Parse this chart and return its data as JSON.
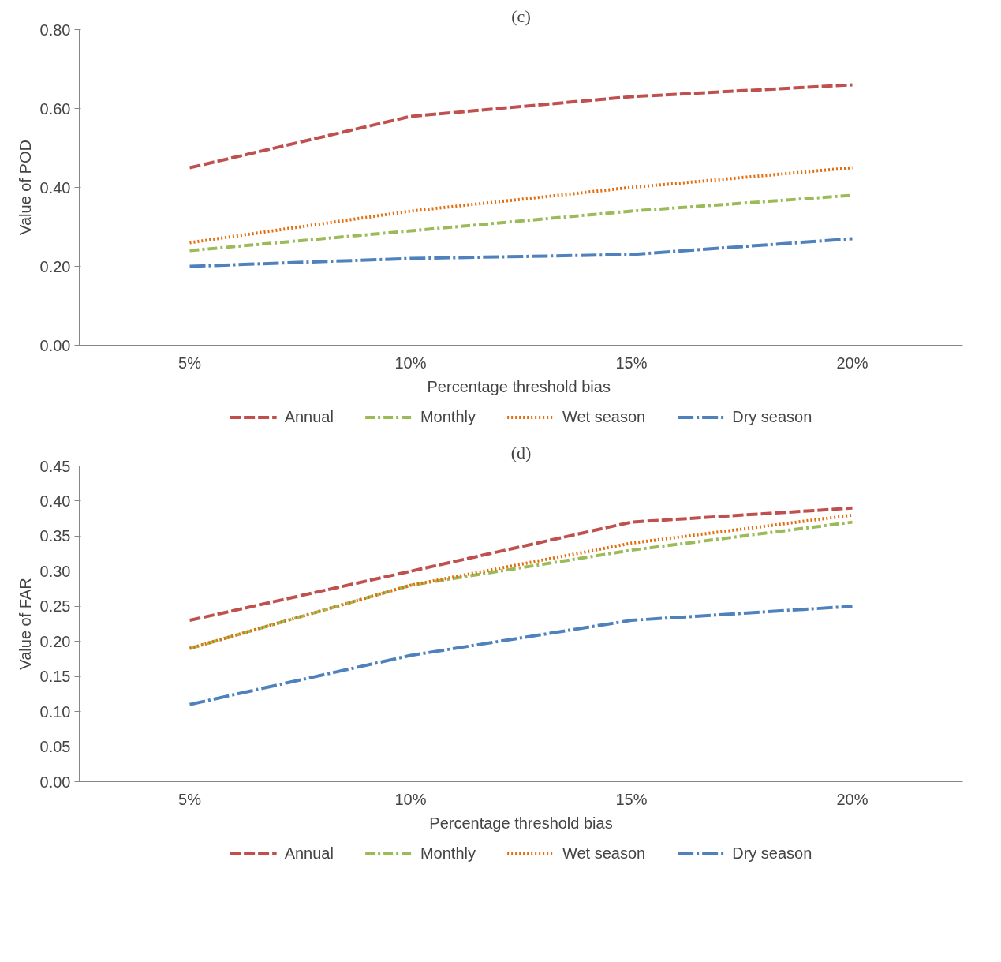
{
  "chart_data": [
    {
      "type": "line",
      "title": "(c)",
      "xlabel": "Percentage  threshold bias",
      "ylabel": "Value of POD",
      "categories": [
        "5%",
        "10%",
        "15%",
        "20%"
      ],
      "ylim": [
        0,
        0.8
      ],
      "yticks": [
        {
          "value": 0,
          "label": "0.00"
        },
        {
          "value": 0.2,
          "label": "0.20"
        },
        {
          "value": 0.4,
          "label": "0.40"
        },
        {
          "value": 0.6,
          "label": "0.60"
        },
        {
          "value": 0.8,
          "label": "0.80"
        }
      ],
      "grid": false,
      "legend": "bottom",
      "marker": "none",
      "series": [
        {
          "name": "Annual",
          "color": "#c0504d",
          "line_style": "dashed",
          "values": [
            0.45,
            0.58,
            0.63,
            0.66
          ]
        },
        {
          "name": "Monthly",
          "color": "#9bbb59",
          "line_style": "dashdot",
          "values": [
            0.24,
            0.29,
            0.34,
            0.38
          ]
        },
        {
          "name": "Wet season",
          "color": "#e46c0a",
          "line_style": "dotted",
          "values": [
            0.26,
            0.34,
            0.4,
            0.45
          ]
        },
        {
          "name": "Dry season",
          "color": "#4f81bd",
          "line_style": "longdashdot",
          "values": [
            0.2,
            0.22,
            0.23,
            0.27
          ]
        }
      ]
    },
    {
      "type": "line",
      "title": "(d)",
      "xlabel": "Percentage threshold bias",
      "ylabel": "Value of FAR",
      "categories": [
        "5%",
        "10%",
        "15%",
        "20%"
      ],
      "ylim": [
        0,
        0.45
      ],
      "yticks": [
        {
          "value": 0,
          "label": "0.00"
        },
        {
          "value": 0.05,
          "label": "0.05"
        },
        {
          "value": 0.1,
          "label": "0.10"
        },
        {
          "value": 0.15,
          "label": "0.15"
        },
        {
          "value": 0.2,
          "label": "0.20"
        },
        {
          "value": 0.25,
          "label": "0.25"
        },
        {
          "value": 0.3,
          "label": "0.30"
        },
        {
          "value": 0.35,
          "label": "0.35"
        },
        {
          "value": 0.4,
          "label": "0.40"
        },
        {
          "value": 0.45,
          "label": "0.45"
        }
      ],
      "grid": false,
      "legend": "bottom",
      "marker": "none",
      "series": [
        {
          "name": "Annual",
          "color": "#c0504d",
          "line_style": "dashed",
          "values": [
            0.23,
            0.3,
            0.37,
            0.39
          ]
        },
        {
          "name": "Monthly",
          "color": "#9bbb59",
          "line_style": "dashdot",
          "values": [
            0.19,
            0.28,
            0.33,
            0.37
          ]
        },
        {
          "name": "Wet season",
          "color": "#e46c0a",
          "line_style": "dotted",
          "values": [
            0.19,
            0.28,
            0.34,
            0.38
          ]
        },
        {
          "name": "Dry season",
          "color": "#4f81bd",
          "line_style": "longdashdot",
          "values": [
            0.11,
            0.18,
            0.23,
            0.25
          ]
        }
      ]
    }
  ]
}
